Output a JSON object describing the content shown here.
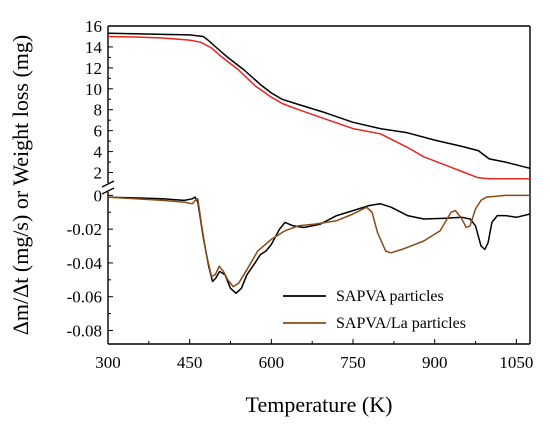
{
  "chart_data": {
    "type": "line",
    "xlabel": "Temperature (K)",
    "ylabel": "Δm/Δt (mg/s) or Weight loss (mg)",
    "xlim": [
      300,
      1075
    ],
    "x_ticks": [
      300,
      450,
      600,
      750,
      900,
      1050
    ],
    "panels": [
      {
        "name": "weight-loss",
        "ylim": [
          1,
          16
        ],
        "y_ticks": [
          "2",
          "4",
          "6",
          "8",
          "10",
          "12",
          "14",
          "16"
        ],
        "series": [
          {
            "color": "#000000",
            "points": [
              [
                300,
                15.3
              ],
              [
                350,
                15.25
              ],
              [
                400,
                15.2
              ],
              [
                450,
                15.15
              ],
              [
                475,
                15.0
              ],
              [
                485,
                14.6
              ],
              [
                500,
                13.9
              ],
              [
                520,
                13.0
              ],
              [
                550,
                11.8
              ],
              [
                580,
                10.4
              ],
              [
                600,
                9.6
              ],
              [
                620,
                9.0
              ],
              [
                650,
                8.5
              ],
              [
                700,
                7.7
              ],
              [
                750,
                6.8
              ],
              [
                800,
                6.2
              ],
              [
                850,
                5.8
              ],
              [
                900,
                5.1
              ],
              [
                950,
                4.5
              ],
              [
                980,
                4.1
              ],
              [
                1000,
                3.3
              ],
              [
                1030,
                3.0
              ],
              [
                1075,
                2.4
              ]
            ]
          },
          {
            "color": "#e8251f",
            "points": [
              [
                300,
                15.0
              ],
              [
                350,
                14.95
              ],
              [
                400,
                14.85
              ],
              [
                450,
                14.65
              ],
              [
                470,
                14.45
              ],
              [
                490,
                13.9
              ],
              [
                510,
                13.0
              ],
              [
                540,
                11.8
              ],
              [
                570,
                10.3
              ],
              [
                600,
                9.2
              ],
              [
                620,
                8.6
              ],
              [
                650,
                8.0
              ],
              [
                700,
                7.1
              ],
              [
                750,
                6.2
              ],
              [
                800,
                5.7
              ],
              [
                850,
                4.4
              ],
              [
                880,
                3.5
              ],
              [
                920,
                2.7
              ],
              [
                950,
                2.1
              ],
              [
                980,
                1.5
              ],
              [
                1000,
                1.4
              ],
              [
                1075,
                1.4
              ]
            ]
          }
        ]
      },
      {
        "name": "rate",
        "ylim": [
          -0.088,
          0.002
        ],
        "y_ticks": [
          "0",
          "-0.02",
          "-0.04",
          "-0.06",
          "-0.08"
        ],
        "series": [
          {
            "name": "SAPVA particles",
            "color": "#000000",
            "points": [
              [
                300,
                -0.001
              ],
              [
                350,
                -0.0015
              ],
              [
                400,
                -0.002
              ],
              [
                440,
                -0.003
              ],
              [
                455,
                -0.002
              ],
              [
                460,
                -0.001
              ],
              [
                465,
                -0.004
              ],
              [
                475,
                -0.025
              ],
              [
                485,
                -0.042
              ],
              [
                492,
                -0.051
              ],
              [
                498,
                -0.049
              ],
              [
                505,
                -0.045
              ],
              [
                515,
                -0.047
              ],
              [
                525,
                -0.055
              ],
              [
                535,
                -0.058
              ],
              [
                545,
                -0.055
              ],
              [
                555,
                -0.047
              ],
              [
                570,
                -0.04
              ],
              [
                580,
                -0.035
              ],
              [
                590,
                -0.033
              ],
              [
                600,
                -0.029
              ],
              [
                615,
                -0.02
              ],
              [
                625,
                -0.016
              ],
              [
                640,
                -0.018
              ],
              [
                660,
                -0.019
              ],
              [
                690,
                -0.017
              ],
              [
                720,
                -0.012
              ],
              [
                750,
                -0.009
              ],
              [
                780,
                -0.006
              ],
              [
                800,
                -0.005
              ],
              [
                820,
                -0.007
              ],
              [
                850,
                -0.012
              ],
              [
                880,
                -0.014
              ],
              [
                920,
                -0.0135
              ],
              [
                950,
                -0.013
              ],
              [
                965,
                -0.014
              ],
              [
                975,
                -0.018
              ],
              [
                985,
                -0.03
              ],
              [
                992,
                -0.032
              ],
              [
                998,
                -0.028
              ],
              [
                1005,
                -0.016
              ],
              [
                1015,
                -0.012
              ],
              [
                1030,
                -0.012
              ],
              [
                1050,
                -0.013
              ],
              [
                1075,
                -0.011
              ]
            ]
          },
          {
            "name": "SAPVA/La particles",
            "color": "#8b4a14",
            "points": [
              [
                300,
                -0.001
              ],
              [
                350,
                -0.002
              ],
              [
                400,
                -0.003
              ],
              [
                440,
                -0.004
              ],
              [
                455,
                -0.005
              ],
              [
                460,
                -0.003
              ],
              [
                465,
                -0.002
              ],
              [
                472,
                -0.018
              ],
              [
                480,
                -0.034
              ],
              [
                490,
                -0.048
              ],
              [
                497,
                -0.047
              ],
              [
                504,
                -0.042
              ],
              [
                512,
                -0.045
              ],
              [
                520,
                -0.05
              ],
              [
                530,
                -0.054
              ],
              [
                540,
                -0.052
              ],
              [
                555,
                -0.044
              ],
              [
                575,
                -0.033
              ],
              [
                600,
                -0.026
              ],
              [
                625,
                -0.021
              ],
              [
                650,
                -0.018
              ],
              [
                680,
                -0.017
              ],
              [
                720,
                -0.015
              ],
              [
                750,
                -0.011
              ],
              [
                775,
                -0.007
              ],
              [
                785,
                -0.01
              ],
              [
                795,
                -0.022
              ],
              [
                810,
                -0.033
              ],
              [
                820,
                -0.034
              ],
              [
                840,
                -0.032
              ],
              [
                880,
                -0.027
              ],
              [
                910,
                -0.021
              ],
              [
                930,
                -0.01
              ],
              [
                938,
                -0.009
              ],
              [
                948,
                -0.013
              ],
              [
                958,
                -0.019
              ],
              [
                965,
                -0.018
              ],
              [
                975,
                -0.008
              ],
              [
                985,
                -0.003
              ],
              [
                995,
                -0.001
              ],
              [
                1030,
                0.0
              ],
              [
                1075,
                0.0
              ]
            ]
          }
        ]
      }
    ]
  }
}
